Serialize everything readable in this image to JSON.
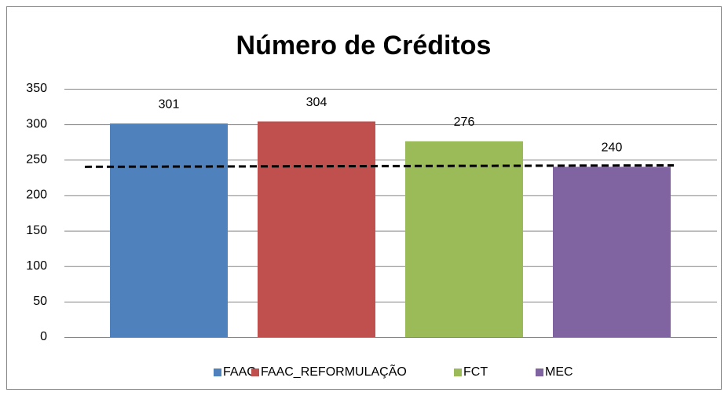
{
  "chart_data": {
    "type": "bar",
    "title": "Número de Créditos",
    "categories": [
      "FAAC",
      "FAAC_REFORMULAÇÃO",
      "FCT",
      "MEC"
    ],
    "values": [
      301,
      304,
      276,
      240
    ],
    "colors": [
      "#4f81bd",
      "#c0504d",
      "#9bbb59",
      "#8064a2"
    ],
    "ylim": [
      0,
      350
    ],
    "yticks": [
      0,
      50,
      100,
      150,
      200,
      250,
      300,
      350
    ],
    "grid": true,
    "dashed_line": [
      240,
      242
    ],
    "legend": "bottom"
  }
}
